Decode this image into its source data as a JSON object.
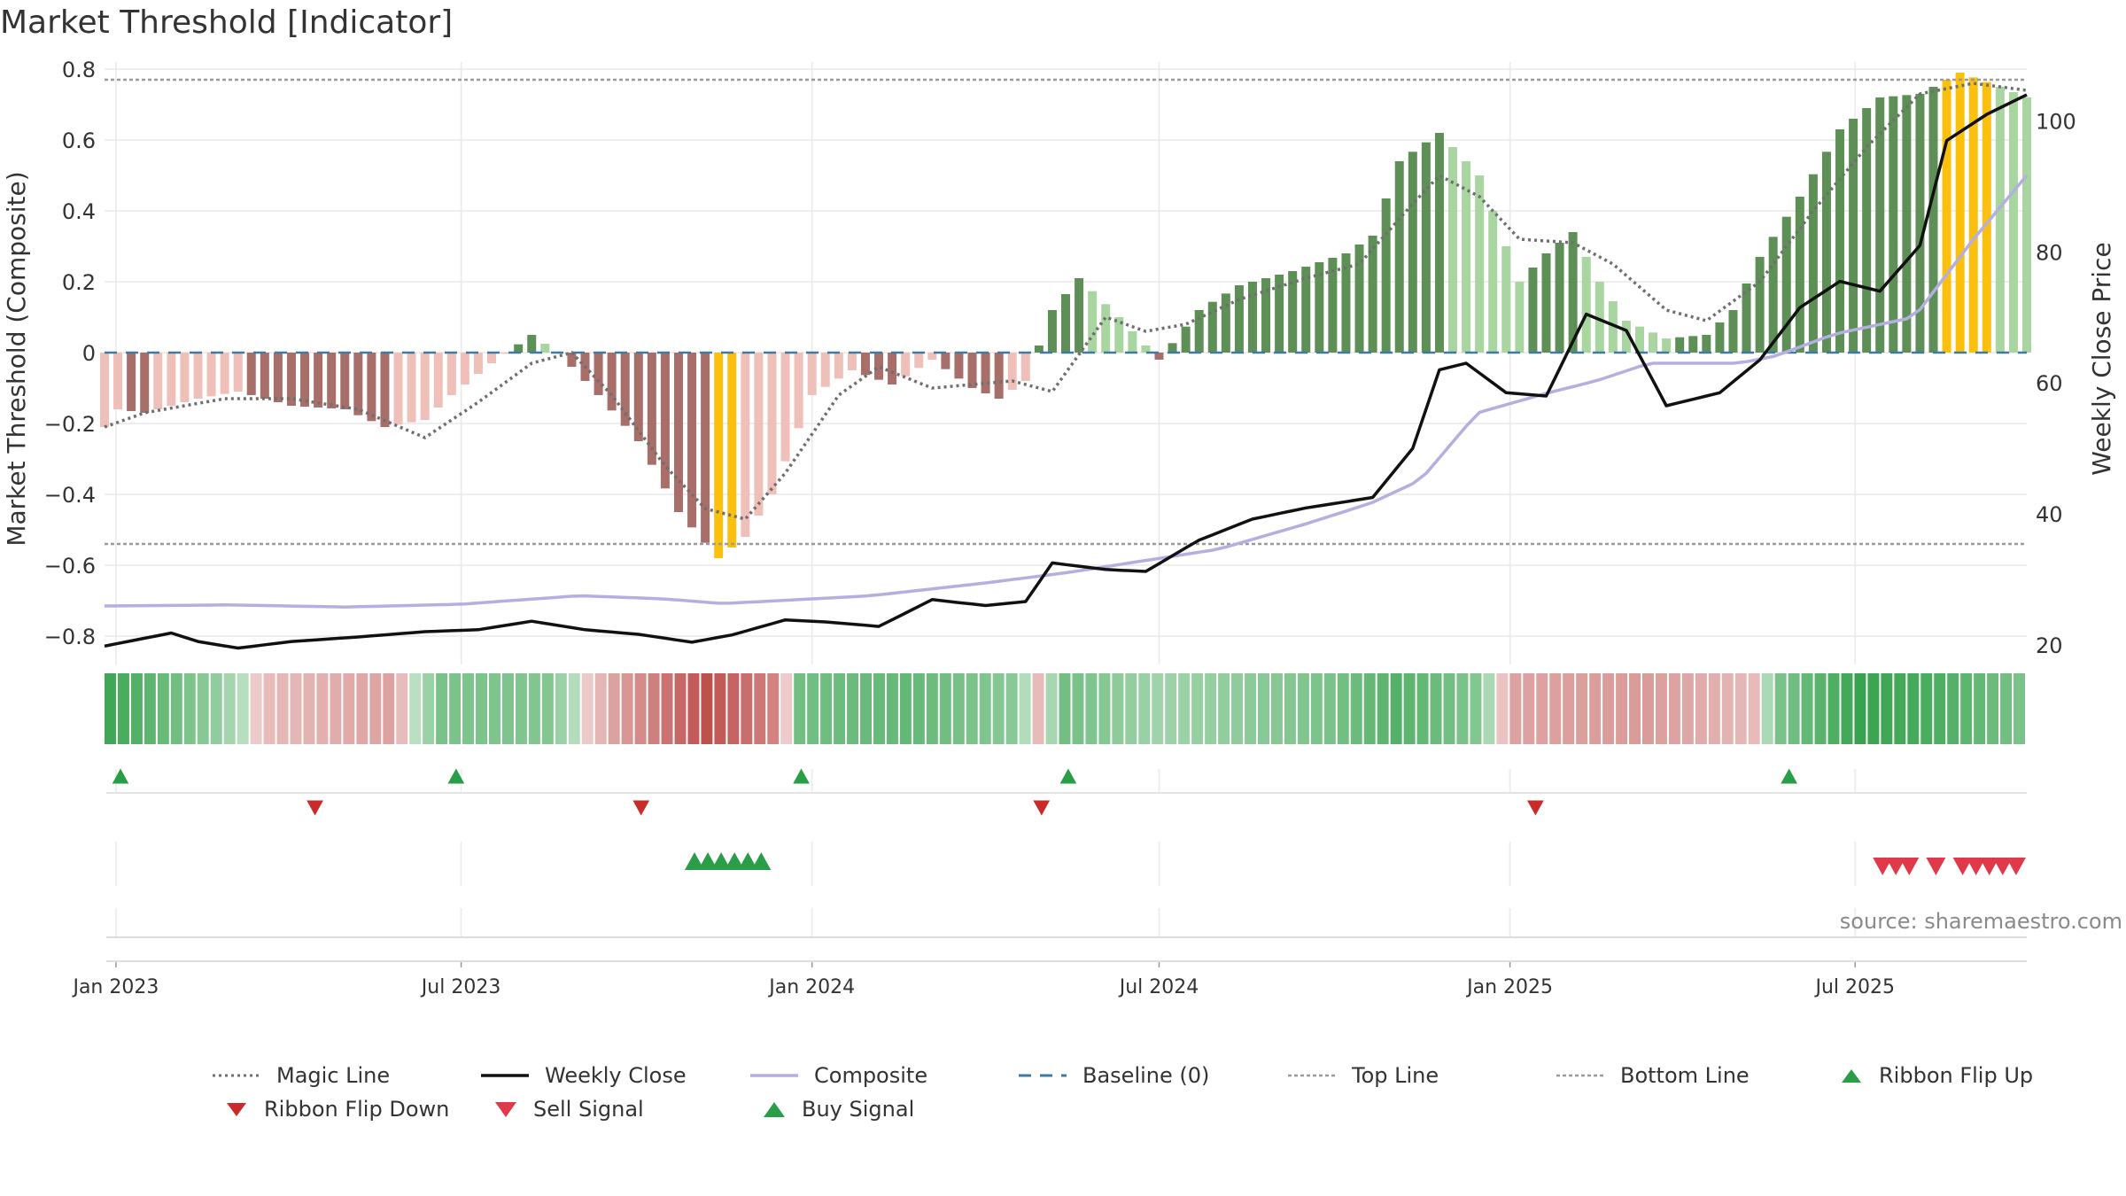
{
  "chart_data": {
    "type": "bar",
    "title": "Market Threshold [Indicator]",
    "ylabel_left": "Market Threshold (Composite)",
    "ylabel_right": "Weekly Close Price",
    "ylim_left": [
      -0.88,
      0.82
    ],
    "ylim_right": [
      17,
      109
    ],
    "yticks_left": [
      0.8,
      0.6,
      0.4,
      0.2,
      0,
      -0.2,
      -0.4,
      -0.6,
      -0.8
    ],
    "ytick_labels_left": [
      "0.8",
      "0.6",
      "0.4",
      "0.2",
      "0",
      "−0.2",
      "−0.4",
      "−0.6",
      "−0.8"
    ],
    "yticks_right": [
      100,
      80,
      60,
      40,
      20
    ],
    "ytick_labels_right": [
      "100",
      "80",
      "60",
      "40",
      "20"
    ],
    "x_start": "2022-12-26",
    "x_end": "2025-09-29",
    "xticks": [
      {
        "date": "2023-01-01",
        "label": "Jan 2023"
      },
      {
        "date": "2023-07-01",
        "label": "Jul 2023"
      },
      {
        "date": "2024-01-01",
        "label": "Jan 2024"
      },
      {
        "date": "2024-07-01",
        "label": "Jul 2024"
      },
      {
        "date": "2025-01-01",
        "label": "Jan 2025"
      },
      {
        "date": "2025-07-01",
        "label": "Jul 2025"
      }
    ],
    "top_line": 0.77,
    "bottom_line": -0.54,
    "baseline": 0,
    "grid": true,
    "legend_position": "bottom",
    "composite_anchors": [
      [
        "2022-12-26",
        -0.21
      ],
      [
        "2023-01-02",
        -0.16
      ],
      [
        "2023-01-16",
        -0.17
      ],
      [
        "2023-02-13",
        -0.13
      ],
      [
        "2023-03-06",
        -0.11
      ],
      [
        "2023-03-20",
        -0.13
      ],
      [
        "2023-04-03",
        -0.15
      ],
      [
        "2023-05-01",
        -0.16
      ],
      [
        "2023-05-22",
        -0.21
      ],
      [
        "2023-06-12",
        -0.19
      ],
      [
        "2023-06-26",
        -0.12
      ],
      [
        "2023-07-17",
        -0.03
      ],
      [
        "2023-08-07",
        0.05
      ],
      [
        "2023-08-21",
        0.0
      ],
      [
        "2023-09-11",
        -0.12
      ],
      [
        "2023-10-02",
        -0.25
      ],
      [
        "2023-10-23",
        -0.45
      ],
      [
        "2023-11-13",
        -0.58
      ],
      [
        "2023-11-27",
        -0.52
      ],
      [
        "2023-12-11",
        -0.4
      ],
      [
        "2024-01-01",
        -0.12
      ],
      [
        "2024-01-22",
        -0.05
      ],
      [
        "2024-02-12",
        -0.09
      ],
      [
        "2024-03-04",
        -0.02
      ],
      [
        "2024-03-25",
        -0.1
      ],
      [
        "2024-04-08",
        -0.13
      ],
      [
        "2024-04-22",
        -0.08
      ],
      [
        "2024-05-06",
        0.12
      ],
      [
        "2024-05-20",
        0.21
      ],
      [
        "2024-06-10",
        0.1
      ],
      [
        "2024-07-01",
        -0.02
      ],
      [
        "2024-07-22",
        0.12
      ],
      [
        "2024-08-12",
        0.19
      ],
      [
        "2024-09-09",
        0.23
      ],
      [
        "2024-10-07",
        0.28
      ],
      [
        "2024-10-21",
        0.33
      ],
      [
        "2024-11-04",
        0.54
      ],
      [
        "2024-11-25",
        0.62
      ],
      [
        "2024-12-16",
        0.5
      ],
      [
        "2025-01-06",
        0.2
      ],
      [
        "2025-01-20",
        0.28
      ],
      [
        "2025-02-03",
        0.34
      ],
      [
        "2025-02-17",
        0.2
      ],
      [
        "2025-03-03",
        0.09
      ],
      [
        "2025-03-24",
        0.04
      ],
      [
        "2025-04-14",
        0.05
      ],
      [
        "2025-04-28",
        0.12
      ],
      [
        "2025-05-12",
        0.27
      ],
      [
        "2025-06-02",
        0.44
      ],
      [
        "2025-06-23",
        0.63
      ],
      [
        "2025-07-14",
        0.72
      ],
      [
        "2025-08-04",
        0.73
      ],
      [
        "2025-08-25",
        0.79
      ],
      [
        "2025-09-15",
        0.75
      ],
      [
        "2025-09-29",
        0.72
      ]
    ],
    "magic_line_anchors": [
      [
        "2022-12-26",
        -0.21
      ],
      [
        "2023-01-16",
        -0.17
      ],
      [
        "2023-02-27",
        -0.13
      ],
      [
        "2023-04-03",
        -0.13
      ],
      [
        "2023-05-08",
        -0.16
      ],
      [
        "2023-06-12",
        -0.24
      ],
      [
        "2023-07-10",
        -0.14
      ],
      [
        "2023-08-07",
        -0.03
      ],
      [
        "2023-08-28",
        0.0
      ],
      [
        "2023-09-18",
        -0.12
      ],
      [
        "2023-10-16",
        -0.32
      ],
      [
        "2023-11-06",
        -0.44
      ],
      [
        "2023-11-27",
        -0.47
      ],
      [
        "2023-12-18",
        -0.34
      ],
      [
        "2024-01-15",
        -0.12
      ],
      [
        "2024-02-05",
        -0.04
      ],
      [
        "2024-03-04",
        -0.1
      ],
      [
        "2024-04-15",
        -0.08
      ],
      [
        "2024-05-06",
        -0.11
      ],
      [
        "2024-06-03",
        0.1
      ],
      [
        "2024-06-24",
        0.06
      ],
      [
        "2024-07-15",
        0.08
      ],
      [
        "2024-08-12",
        0.15
      ],
      [
        "2024-09-16",
        0.21
      ],
      [
        "2024-10-14",
        0.25
      ],
      [
        "2024-11-11",
        0.42
      ],
      [
        "2024-11-25",
        0.5
      ],
      [
        "2024-12-16",
        0.44
      ],
      [
        "2025-01-06",
        0.32
      ],
      [
        "2025-02-03",
        0.31
      ],
      [
        "2025-02-24",
        0.25
      ],
      [
        "2025-03-24",
        0.12
      ],
      [
        "2025-04-14",
        0.09
      ],
      [
        "2025-05-12",
        0.2
      ],
      [
        "2025-06-09",
        0.4
      ],
      [
        "2025-07-07",
        0.58
      ],
      [
        "2025-08-04",
        0.73
      ],
      [
        "2025-09-01",
        0.76
      ],
      [
        "2025-09-29",
        0.74
      ]
    ],
    "weekly_close_anchors": [
      [
        "2022-12-26",
        19.8
      ],
      [
        "2023-01-09",
        20.6
      ],
      [
        "2023-01-30",
        21.8
      ],
      [
        "2023-02-13",
        20.5
      ],
      [
        "2023-03-06",
        19.5
      ],
      [
        "2023-04-03",
        20.5
      ],
      [
        "2023-05-08",
        21.2
      ],
      [
        "2023-06-12",
        22.0
      ],
      [
        "2023-07-10",
        22.3
      ],
      [
        "2023-08-07",
        23.6
      ],
      [
        "2023-09-04",
        22.3
      ],
      [
        "2023-10-02",
        21.6
      ],
      [
        "2023-10-30",
        20.4
      ],
      [
        "2023-11-20",
        21.5
      ],
      [
        "2023-12-18",
        23.8
      ],
      [
        "2024-01-08",
        23.5
      ],
      [
        "2024-02-05",
        22.8
      ],
      [
        "2024-03-04",
        26.9
      ],
      [
        "2024-04-01",
        26.0
      ],
      [
        "2024-04-22",
        26.6
      ],
      [
        "2024-05-06",
        32.5
      ],
      [
        "2024-06-03",
        31.5
      ],
      [
        "2024-06-24",
        31.2
      ],
      [
        "2024-07-22",
        36.0
      ],
      [
        "2024-08-19",
        39.2
      ],
      [
        "2024-09-16",
        40.9
      ],
      [
        "2024-10-21",
        42.5
      ],
      [
        "2024-11-11",
        50.0
      ],
      [
        "2024-11-25",
        62.0
      ],
      [
        "2024-12-09",
        63.0
      ],
      [
        "2024-12-30",
        58.5
      ],
      [
        "2025-01-20",
        58.0
      ],
      [
        "2025-02-10",
        70.5
      ],
      [
        "2025-03-03",
        68.0
      ],
      [
        "2025-03-24",
        56.5
      ],
      [
        "2025-04-21",
        58.5
      ],
      [
        "2025-05-12",
        63.5
      ],
      [
        "2025-06-02",
        71.5
      ],
      [
        "2025-06-23",
        75.5
      ],
      [
        "2025-07-14",
        74.0
      ],
      [
        "2025-08-04",
        81.0
      ],
      [
        "2025-08-18",
        97.0
      ],
      [
        "2025-09-08",
        101.0
      ],
      [
        "2025-09-29",
        104.0
      ]
    ],
    "composite_line_anchors": [
      [
        "2022-12-26",
        -0.715
      ],
      [
        "2023-03-01",
        -0.712
      ],
      [
        "2023-05-01",
        -0.718
      ],
      [
        "2023-07-01",
        -0.71
      ],
      [
        "2023-09-01",
        -0.686
      ],
      [
        "2023-10-15",
        -0.695
      ],
      [
        "2023-11-15",
        -0.708
      ],
      [
        "2023-12-15",
        -0.7
      ],
      [
        "2024-02-01",
        -0.686
      ],
      [
        "2024-04-01",
        -0.65
      ],
      [
        "2024-05-15",
        -0.62
      ],
      [
        "2024-06-15",
        -0.594
      ],
      [
        "2024-08-01",
        -0.555
      ],
      [
        "2024-09-15",
        -0.485
      ],
      [
        "2024-10-20",
        -0.425
      ],
      [
        "2024-11-15",
        -0.36
      ],
      [
        "2024-12-15",
        -0.17
      ],
      [
        "2025-01-20",
        -0.115
      ],
      [
        "2025-02-15",
        -0.08
      ],
      [
        "2025-03-15",
        -0.03
      ],
      [
        "2025-05-01",
        -0.03
      ],
      [
        "2025-05-20",
        -0.01
      ],
      [
        "2025-06-20",
        0.052
      ],
      [
        "2025-08-01",
        0.1
      ],
      [
        "2025-09-01",
        0.32
      ],
      [
        "2025-09-29",
        0.5
      ]
    ],
    "signals": {
      "ribbon_flip_up": [
        "2022-12-26",
        "2023-06-20",
        "2023-12-18",
        "2024-05-06",
        "2025-05-19"
      ],
      "ribbon_flip_down": [
        "2023-04-07",
        "2023-09-25",
        "2024-04-22",
        "2025-01-06"
      ],
      "buy_signal": [
        "2023-10-23",
        "2023-10-30",
        "2023-11-06",
        "2023-11-13",
        "2023-11-20",
        "2023-11-27"
      ],
      "sell_signal": [
        "2025-07-07",
        "2025-07-14",
        "2025-07-21",
        "2025-08-04",
        "2025-08-18",
        "2025-08-25",
        "2025-09-01",
        "2025-09-08",
        "2025-09-15"
      ]
    },
    "ribbon_anchors": [
      [
        "2022-12-26",
        0.9
      ],
      [
        "2023-02-20",
        0.35
      ],
      [
        "2023-03-20",
        -0.15
      ],
      [
        "2023-05-22",
        -0.35
      ],
      [
        "2023-06-19",
        0.5
      ],
      [
        "2023-08-14",
        0.45
      ],
      [
        "2023-09-18",
        -0.35
      ],
      [
        "2023-11-06",
        -1.0
      ],
      [
        "2023-12-11",
        -0.6
      ],
      [
        "2023-12-25",
        0.55
      ],
      [
        "2024-02-19",
        0.65
      ],
      [
        "2024-04-15",
        0.4
      ],
      [
        "2024-04-29",
        -0.15
      ],
      [
        "2024-05-13",
        0.55
      ],
      [
        "2024-07-01",
        0.25
      ],
      [
        "2024-09-30",
        0.5
      ],
      [
        "2024-11-04",
        0.75
      ],
      [
        "2024-12-16",
        0.45
      ],
      [
        "2025-01-06",
        -0.35
      ],
      [
        "2025-03-17",
        -0.4
      ],
      [
        "2025-05-12",
        -0.15
      ],
      [
        "2025-05-26",
        0.5
      ],
      [
        "2025-07-07",
        0.95
      ],
      [
        "2025-08-18",
        0.8
      ],
      [
        "2025-09-29",
        0.5
      ]
    ],
    "source": "source: sharemaestro.com"
  },
  "legend": [
    {
      "label": "Magic Line",
      "kind": "dotted",
      "color": "#707070"
    },
    {
      "label": "Weekly Close",
      "kind": "solid",
      "color": "#111111"
    },
    {
      "label": "Composite",
      "kind": "solid",
      "color": "#b5aee0"
    },
    {
      "label": "Baseline (0)",
      "kind": "dashed",
      "color": "#3a7ca5"
    },
    {
      "label": "Top Line",
      "kind": "dotted",
      "color": "#9a9a9a"
    },
    {
      "label": "Bottom Line",
      "kind": "dotted",
      "color": "#9a9a9a"
    },
    {
      "label": "Ribbon Flip Up",
      "kind": "up",
      "color": "#2a9d49"
    },
    {
      "label": "Ribbon Flip Down",
      "kind": "down",
      "color": "#c92a2a"
    },
    {
      "label": "Sell Signal",
      "kind": "down",
      "color": "#e03a4a"
    },
    {
      "label": "Buy Signal",
      "kind": "up",
      "color": "#2a9d49"
    }
  ],
  "colors": {
    "green_dark": "#5e8f56",
    "green_light": "#a8d5a0",
    "red_dark": "#a86e6a",
    "red_light": "#efc0ba",
    "extreme": "#fbbf0e",
    "grid": "#e9e9e9"
  }
}
